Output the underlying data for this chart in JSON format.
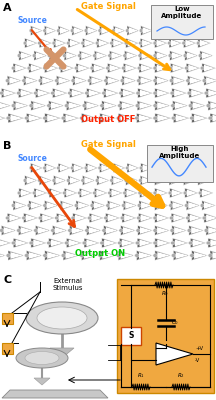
{
  "panel_A_label": "A",
  "panel_B_label": "B",
  "panel_C_label": "C",
  "source_label": "Source",
  "gate_label": "Gate Signal",
  "output_off_label": "Output OFF",
  "output_on_label": "Output ON",
  "low_amp_label": "Low\nAmplitude",
  "high_amp_label": "High\nAmplitude",
  "external_stimulus_label": "External\nStimulus",
  "colors": {
    "source_arrow": "#E8470A",
    "gate_arrow": "#FFA500",
    "output_off": "#FF2200",
    "output_on": "#00CC00",
    "source_text": "#4488FF",
    "gate_text": "#FFA500",
    "cross_color": "#D4956A",
    "box_bg": "#EEEEEE",
    "wave_color": "#4488FF",
    "circuit_bg": "#F0A840",
    "S_box_border": "#CC4400",
    "lattice_tri_dark": "#555555",
    "lattice_tri_fill": "#FFFFFF",
    "lattice_stone": "#AAAAAA"
  }
}
